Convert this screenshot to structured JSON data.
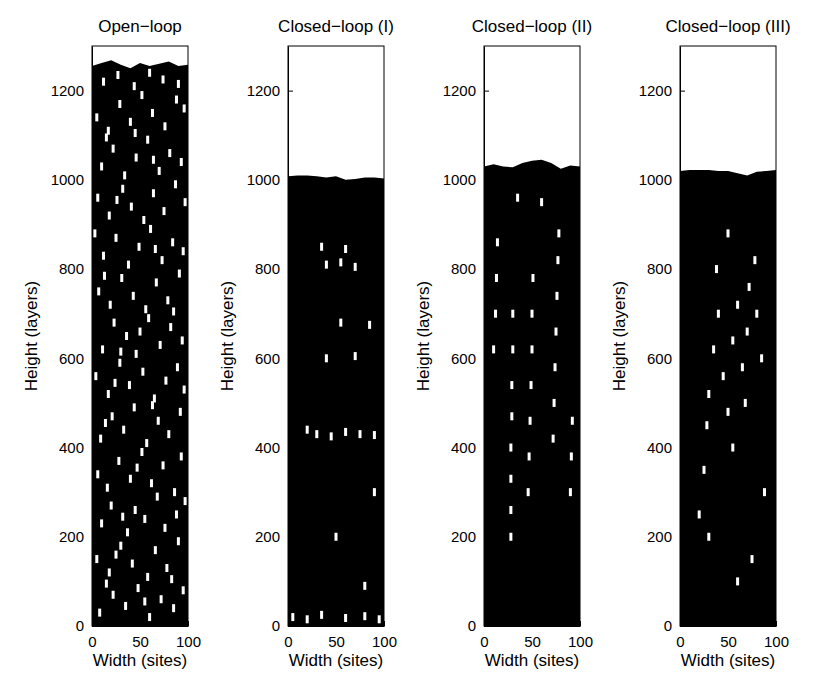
{
  "chart_data": [
    {
      "type": "scatter",
      "title": "Open−loop",
      "xlabel": "Width (sites)",
      "ylabel": "Height (layers)",
      "xlim": [
        0,
        100
      ],
      "ylim": [
        0,
        1300
      ],
      "xticks": [
        0,
        50,
        100
      ],
      "yticks": [
        0,
        200,
        400,
        600,
        800,
        1000,
        1200
      ],
      "surface": {
        "x": [
          0,
          10,
          20,
          30,
          40,
          50,
          60,
          70,
          80,
          90,
          100
        ],
        "y": [
          1255,
          1262,
          1268,
          1258,
          1250,
          1262,
          1255,
          1260,
          1265,
          1255,
          1258
        ]
      },
      "voids": {
        "x": [
          8,
          22,
          35,
          48,
          60,
          72,
          85,
          95,
          15,
          55,
          5,
          18,
          30,
          42,
          58,
          66,
          78,
          90,
          25,
          83,
          10,
          20,
          37,
          45,
          55,
          68,
          76,
          88,
          97,
          32,
          6,
          16,
          28,
          40,
          52,
          62,
          74,
          86,
          93,
          47,
          9,
          21,
          33,
          44,
          57,
          69,
          80,
          92,
          14,
          63,
          4,
          17,
          29,
          39,
          53,
          65,
          77,
          89,
          96,
          24,
          11,
          23,
          36,
          46,
          59,
          71,
          82,
          94,
          50,
          30,
          7,
          19,
          31,
          43,
          56,
          67,
          79,
          91,
          85,
          13,
          12,
          25,
          38,
          49,
          61,
          73,
          84,
          95,
          3,
          66,
          6,
          18,
          32,
          41,
          54,
          64,
          75,
          87,
          97,
          26,
          10,
          22,
          34,
          46,
          58,
          70,
          81,
          93,
          15,
          64,
          5,
          17,
          29,
          40,
          52,
          63,
          76,
          88,
          96,
          45,
          12,
          27,
          44,
          60,
          74,
          90
        ],
        "y": [
          30,
          70,
          45,
          85,
          20,
          60,
          40,
          80,
          95,
          55,
          150,
          120,
          180,
          140,
          110,
          170,
          130,
          190,
          160,
          105,
          230,
          270,
          210,
          260,
          240,
          290,
          220,
          250,
          280,
          245,
          340,
          310,
          370,
          330,
          390,
          320,
          360,
          300,
          380,
          355,
          420,
          470,
          440,
          490,
          410,
          460,
          430,
          480,
          455,
          495,
          560,
          520,
          590,
          540,
          570,
          510,
          550,
          580,
          530,
          545,
          620,
          680,
          650,
          610,
          690,
          630,
          670,
          640,
          660,
          615,
          750,
          720,
          780,
          740,
          710,
          770,
          730,
          790,
          705,
          785,
          830,
          870,
          810,
          850,
          890,
          820,
          860,
          840,
          880,
          845,
          960,
          920,
          980,
          940,
          910,
          970,
          930,
          990,
          950,
          955,
          1030,
          1070,
          1010,
          1050,
          1090,
          1020,
          1060,
          1040,
          1095,
          1045,
          1140,
          1110,
          1170,
          1130,
          1190,
          1150,
          1120,
          1180,
          1160,
          1105,
          1220,
          1235,
          1210,
          1240,
          1225,
          1215
        ]
      }
    },
    {
      "type": "scatter",
      "title": "Closed−loop (I)",
      "xlabel": "Width (sites)",
      "ylabel": "Height (layers)",
      "xlim": [
        0,
        100
      ],
      "ylim": [
        0,
        1300
      ],
      "xticks": [
        0,
        50,
        100
      ],
      "yticks": [
        0,
        200,
        400,
        600,
        800,
        1000,
        1200
      ],
      "surface": {
        "x": [
          0,
          10,
          20,
          30,
          40,
          50,
          60,
          70,
          80,
          90,
          100
        ],
        "y": [
          1008,
          1010,
          1010,
          1008,
          1005,
          1008,
          1000,
          1002,
          1005,
          1005,
          1003
        ]
      },
      "voids": {
        "x": [
          5,
          20,
          35,
          60,
          80,
          95,
          30,
          45,
          60,
          75,
          90,
          20,
          40,
          70,
          55,
          85,
          40,
          55,
          70,
          35,
          60,
          90,
          50,
          80
        ],
        "y": [
          20,
          15,
          25,
          18,
          22,
          15,
          430,
          425,
          435,
          430,
          428,
          440,
          600,
          605,
          680,
          675,
          810,
          815,
          805,
          850,
          845,
          300,
          200,
          90
        ]
      }
    },
    {
      "type": "scatter",
      "title": "Closed−loop (II)",
      "xlabel": "Width (sites)",
      "ylabel": "Height (layers)",
      "xlim": [
        0,
        100
      ],
      "ylim": [
        0,
        1300
      ],
      "xticks": [
        0,
        50,
        100
      ],
      "yticks": [
        0,
        200,
        400,
        600,
        800,
        1000,
        1200
      ],
      "surface": {
        "x": [
          0,
          10,
          20,
          30,
          40,
          50,
          60,
          70,
          80,
          90,
          100
        ],
        "y": [
          1030,
          1035,
          1030,
          1028,
          1038,
          1043,
          1045,
          1038,
          1025,
          1032,
          1030
        ]
      },
      "voids": {
        "x": [
          28,
          28,
          28,
          28,
          29,
          29,
          30,
          30,
          46,
          47,
          48,
          49,
          50,
          50,
          51,
          72,
          73,
          74,
          75,
          76,
          77,
          78,
          10,
          12,
          13,
          14,
          90,
          91,
          92,
          60,
          35
        ],
        "y": [
          200,
          260,
          330,
          400,
          470,
          540,
          620,
          700,
          300,
          380,
          460,
          540,
          620,
          700,
          780,
          420,
          500,
          580,
          660,
          740,
          820,
          880,
          620,
          700,
          780,
          860,
          300,
          380,
          460,
          950,
          960
        ]
      }
    },
    {
      "type": "scatter",
      "title": "Closed−loop (III)",
      "xlabel": "Width (sites)",
      "ylabel": "Height (layers)",
      "xlim": [
        0,
        100
      ],
      "ylim": [
        0,
        1300
      ],
      "xticks": [
        0,
        50,
        100
      ],
      "yticks": [
        0,
        200,
        400,
        600,
        800,
        1000,
        1200
      ],
      "surface": {
        "x": [
          0,
          10,
          20,
          30,
          40,
          50,
          60,
          70,
          80,
          90,
          100
        ],
        "y": [
          1020,
          1022,
          1022,
          1022,
          1020,
          1020,
          1015,
          1010,
          1018,
          1020,
          1022
        ]
      },
      "voids": {
        "x": [
          25,
          28,
          30,
          35,
          40,
          45,
          50,
          55,
          60,
          65,
          70,
          72,
          78,
          80,
          85,
          20,
          88,
          55,
          68,
          38,
          50,
          30,
          75,
          60
        ],
        "y": [
          350,
          450,
          520,
          620,
          700,
          560,
          480,
          640,
          720,
          580,
          660,
          760,
          820,
          700,
          600,
          250,
          300,
          400,
          500,
          800,
          880,
          200,
          150,
          100
        ]
      }
    }
  ]
}
